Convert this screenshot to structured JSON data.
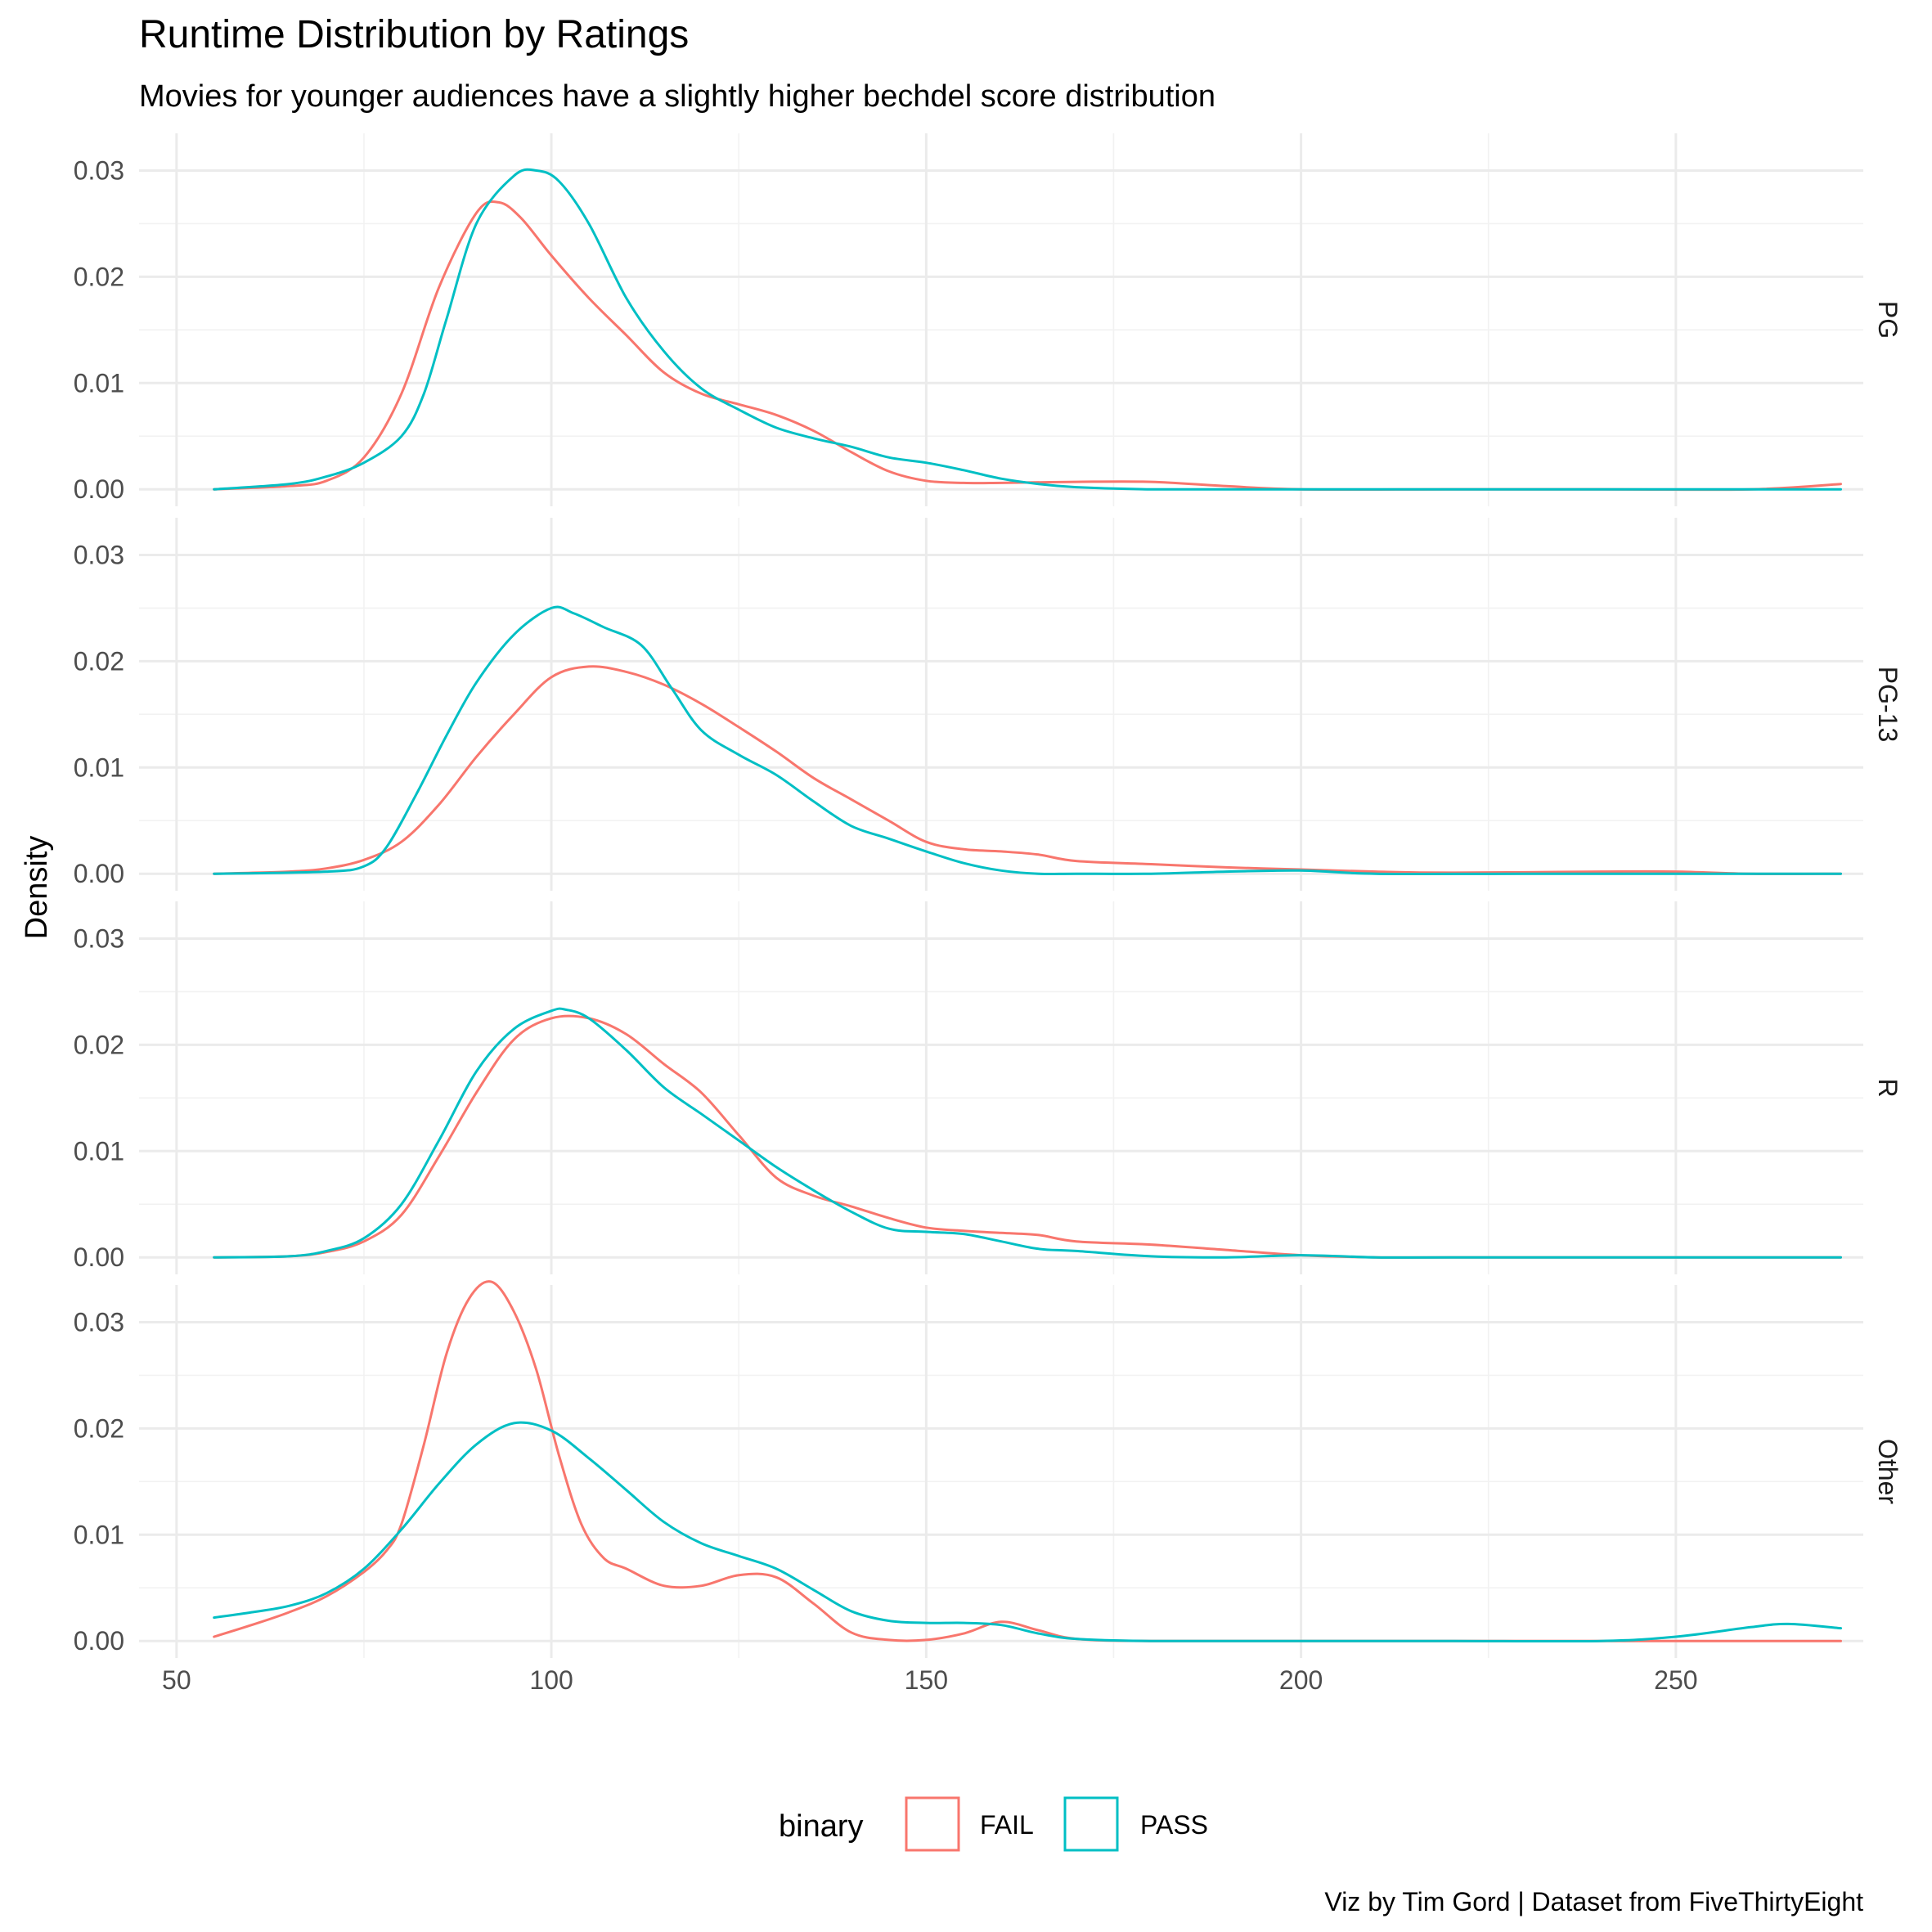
{
  "chart_data": {
    "type": "line",
    "title": "Runtime Distribution by Ratings",
    "subtitle": "Movies for younger audiences have a slightly higher bechdel score distribution",
    "xlabel": "",
    "ylabel": "Density",
    "caption": "Viz by Tim Gord | Dataset from FiveThirtyEight",
    "xlim": [
      45,
      275
    ],
    "ylim": [
      -0.0016,
      0.0335
    ],
    "x_ticks": [
      50,
      100,
      150,
      200,
      250
    ],
    "y_ticks": [
      0.0,
      0.01,
      0.02,
      0.03
    ],
    "y_tick_labels": [
      "0.00",
      "0.01",
      "0.02",
      "0.03"
    ],
    "grid": true,
    "legend": {
      "title": "binary",
      "position": "bottom",
      "entries": [
        {
          "label": "FAIL",
          "color": "#F8766D"
        },
        {
          "label": "PASS",
          "color": "#00BFC4"
        }
      ]
    },
    "panels": [
      {
        "label": "PG",
        "series": [
          {
            "name": "FAIL",
            "color": "#F8766D",
            "x": [
              55,
              65,
              70,
              75,
              80,
              85,
              90,
              93,
              96,
              100,
              105,
              110,
              115,
              120,
              125,
              130,
              135,
              140,
              145,
              150,
              155,
              160,
              170,
              180,
              190,
              200,
              220,
              240,
              260,
              272
            ],
            "y": [
              0.0,
              0.0003,
              0.0008,
              0.003,
              0.009,
              0.019,
              0.026,
              0.027,
              0.0255,
              0.022,
              0.018,
              0.0145,
              0.011,
              0.009,
              0.008,
              0.007,
              0.0055,
              0.0035,
              0.0017,
              0.0008,
              0.0006,
              0.0006,
              0.0007,
              0.0007,
              0.0003,
              0.0,
              0.0,
              0.0,
              0.0,
              0.0005
            ]
          },
          {
            "name": "PASS",
            "color": "#00BFC4",
            "x": [
              55,
              65,
              70,
              75,
              80,
              83,
              86,
              90,
              95,
              98,
              101,
              105,
              110,
              115,
              120,
              125,
              130,
              135,
              140,
              145,
              150,
              155,
              160,
              165,
              170,
              180,
              200,
              220,
              250,
              272
            ],
            "y": [
              0.0,
              0.0005,
              0.0012,
              0.0025,
              0.005,
              0.009,
              0.016,
              0.025,
              0.0295,
              0.03,
              0.029,
              0.025,
              0.018,
              0.013,
              0.0095,
              0.0075,
              0.0058,
              0.0048,
              0.004,
              0.003,
              0.0025,
              0.0018,
              0.001,
              0.0005,
              0.0002,
              0.0,
              0.0,
              0.0,
              0.0,
              0.0
            ]
          }
        ]
      },
      {
        "label": "PG-13",
        "series": [
          {
            "name": "FAIL",
            "color": "#F8766D",
            "x": [
              55,
              65,
              70,
              75,
              80,
              85,
              90,
              95,
              100,
              105,
              110,
              115,
              120,
              125,
              130,
              135,
              140,
              145,
              150,
              155,
              160,
              165,
              170,
              180,
              190,
              200,
              210,
              220,
              240,
              250,
              260,
              272
            ],
            "y": [
              0.0,
              0.0002,
              0.0005,
              0.0013,
              0.003,
              0.0065,
              0.011,
              0.015,
              0.0185,
              0.0195,
              0.019,
              0.0178,
              0.016,
              0.0138,
              0.0115,
              0.009,
              0.007,
              0.005,
              0.003,
              0.0023,
              0.0021,
              0.0018,
              0.0012,
              0.0009,
              0.0006,
              0.0004,
              0.0002,
              0.0001,
              0.0002,
              0.0002,
              0.0,
              0.0
            ]
          },
          {
            "name": "PASS",
            "color": "#00BFC4",
            "x": [
              55,
              70,
              75,
              78,
              82,
              86,
              90,
              95,
              100,
              103,
              107,
              112,
              116,
              120,
              125,
              130,
              135,
              140,
              145,
              150,
              155,
              160,
              165,
              170,
              180,
              190,
              200,
              210,
              230,
              250,
              272
            ],
            "y": [
              0.0,
              0.0002,
              0.0007,
              0.0025,
              0.0075,
              0.013,
              0.018,
              0.0225,
              0.025,
              0.0245,
              0.0232,
              0.0215,
              0.0175,
              0.0135,
              0.0112,
              0.0093,
              0.0068,
              0.0045,
              0.0033,
              0.0021,
              0.001,
              0.0003,
              0.0,
              0.0,
              0.0,
              0.0002,
              0.0003,
              0.0,
              0.0,
              0.0,
              0.0
            ]
          }
        ]
      },
      {
        "label": "R",
        "series": [
          {
            "name": "FAIL",
            "color": "#F8766D",
            "x": [
              55,
              65,
              70,
              75,
              80,
              85,
              90,
              95,
              100,
              105,
              110,
              115,
              120,
              125,
              130,
              135,
              140,
              145,
              150,
              155,
              160,
              165,
              170,
              180,
              190,
              200,
              210,
              220,
              250,
              272
            ],
            "y": [
              0.0,
              0.0001,
              0.0005,
              0.0015,
              0.004,
              0.0095,
              0.0155,
              0.0205,
              0.0225,
              0.0225,
              0.021,
              0.0182,
              0.0155,
              0.0115,
              0.0075,
              0.0058,
              0.0048,
              0.0037,
              0.0028,
              0.0025,
              0.0023,
              0.0021,
              0.0015,
              0.0012,
              0.0007,
              0.0002,
              0.0,
              0.0,
              0.0,
              0.0
            ]
          },
          {
            "name": "PASS",
            "color": "#00BFC4",
            "x": [
              55,
              65,
              70,
              75,
              80,
              85,
              90,
              95,
              100,
              102,
              105,
              110,
              115,
              120,
              125,
              130,
              135,
              140,
              145,
              150,
              155,
              160,
              165,
              170,
              180,
              190,
              200,
              210,
              220,
              250,
              272
            ],
            "y": [
              0.0,
              0.0001,
              0.0006,
              0.0018,
              0.005,
              0.011,
              0.0175,
              0.0215,
              0.0232,
              0.0233,
              0.0225,
              0.0195,
              0.016,
              0.0135,
              0.011,
              0.0085,
              0.0063,
              0.0043,
              0.0027,
              0.0024,
              0.0022,
              0.0015,
              0.0008,
              0.0006,
              0.0001,
              0.0,
              0.0002,
              0.0,
              0.0,
              0.0,
              0.0
            ]
          }
        ]
      },
      {
        "label": "Other",
        "series": [
          {
            "name": "FAIL",
            "color": "#F8766D",
            "x": [
              55,
              60,
              65,
              70,
              75,
              78,
              80,
              83,
              86,
              89,
              92,
              95,
              98,
              101,
              104,
              107,
              110,
              115,
              120,
              125,
              130,
              135,
              140,
              145,
              150,
              155,
              160,
              165,
              170,
              180,
              200,
              230,
              272
            ],
            "y": [
              0.0004,
              0.0015,
              0.0027,
              0.0042,
              0.0065,
              0.0085,
              0.011,
              0.0185,
              0.027,
              0.0322,
              0.0338,
              0.031,
              0.0255,
              0.0175,
              0.011,
              0.0078,
              0.0068,
              0.0052,
              0.0052,
              0.0062,
              0.006,
              0.0035,
              0.0008,
              0.0001,
              0.0001,
              0.0007,
              0.0018,
              0.001,
              0.0002,
              0.0,
              0.0,
              0.0,
              0.0
            ]
          },
          {
            "name": "PASS",
            "color": "#00BFC4",
            "x": [
              55,
              60,
              65,
              70,
              75,
              80,
              85,
              90,
              95,
              100,
              105,
              110,
              115,
              120,
              125,
              130,
              135,
              140,
              145,
              150,
              155,
              160,
              165,
              170,
              180,
              200,
              220,
              240,
              250,
              260,
              265,
              272
            ],
            "y": [
              0.0022,
              0.0027,
              0.0033,
              0.0045,
              0.0068,
              0.0105,
              0.0148,
              0.0185,
              0.0205,
              0.0198,
              0.0172,
              0.0142,
              0.0112,
              0.0092,
              0.008,
              0.0068,
              0.0048,
              0.0028,
              0.0019,
              0.0017,
              0.0017,
              0.0015,
              0.0007,
              0.0002,
              0.0,
              0.0,
              0.0,
              0.0,
              0.0004,
              0.0013,
              0.0016,
              0.0012
            ]
          }
        ]
      }
    ]
  }
}
